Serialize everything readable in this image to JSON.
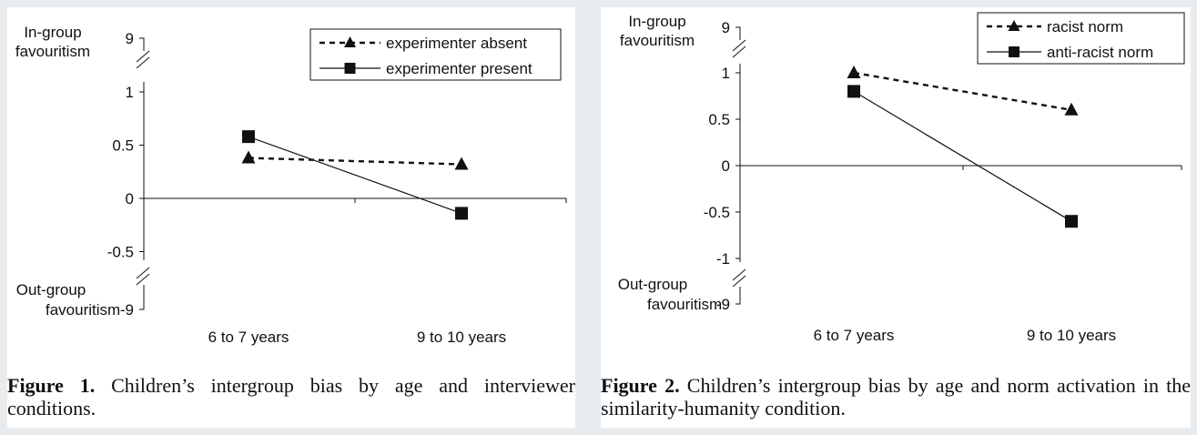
{
  "chart_data": [
    {
      "type": "line",
      "categories": [
        "6 to 7 years",
        "9 to 10 years"
      ],
      "series": [
        {
          "name": "experimenter absent",
          "values": [
            0.38,
            0.32
          ],
          "style": "dashed",
          "marker": "triangle"
        },
        {
          "name": "experimenter present",
          "values": [
            0.58,
            -0.14
          ],
          "style": "solid",
          "marker": "square"
        }
      ],
      "ylim": [
        -0.5,
        1
      ],
      "yticks": [
        "1",
        "0.5",
        "0",
        "-0.5"
      ],
      "y_break_top": "9",
      "y_break_bottom": "-9",
      "y_top_label": [
        "In-group",
        "favouritism"
      ],
      "y_bottom_label": [
        "Out-group",
        "favouritism"
      ],
      "legend_position": "top-right",
      "grid": false,
      "caption_label": "Figure 1.",
      "caption_text": "Children’s intergroup bias by age and interviewer conditions."
    },
    {
      "type": "line",
      "categories": [
        "6 to 7 years",
        "9 to 10 years"
      ],
      "series": [
        {
          "name": "racist norm",
          "values": [
            1.0,
            0.6
          ],
          "style": "dashed",
          "marker": "triangle"
        },
        {
          "name": "anti-racist norm",
          "values": [
            0.8,
            -0.6
          ],
          "style": "solid",
          "marker": "square"
        }
      ],
      "ylim": [
        -1,
        1
      ],
      "yticks": [
        "1",
        "0.5",
        "0",
        "-0.5",
        "-1"
      ],
      "y_break_top": "9",
      "y_break_bottom": "-9",
      "y_top_label": [
        "In-group",
        "favouritism"
      ],
      "y_bottom_label": [
        "Out-group",
        "favouritism"
      ],
      "legend_position": "top-right",
      "grid": false,
      "caption_label": "Figure 2.",
      "caption_text": "Children’s intergroup bias by age and norm activation in the similarity-humanity condition."
    }
  ]
}
